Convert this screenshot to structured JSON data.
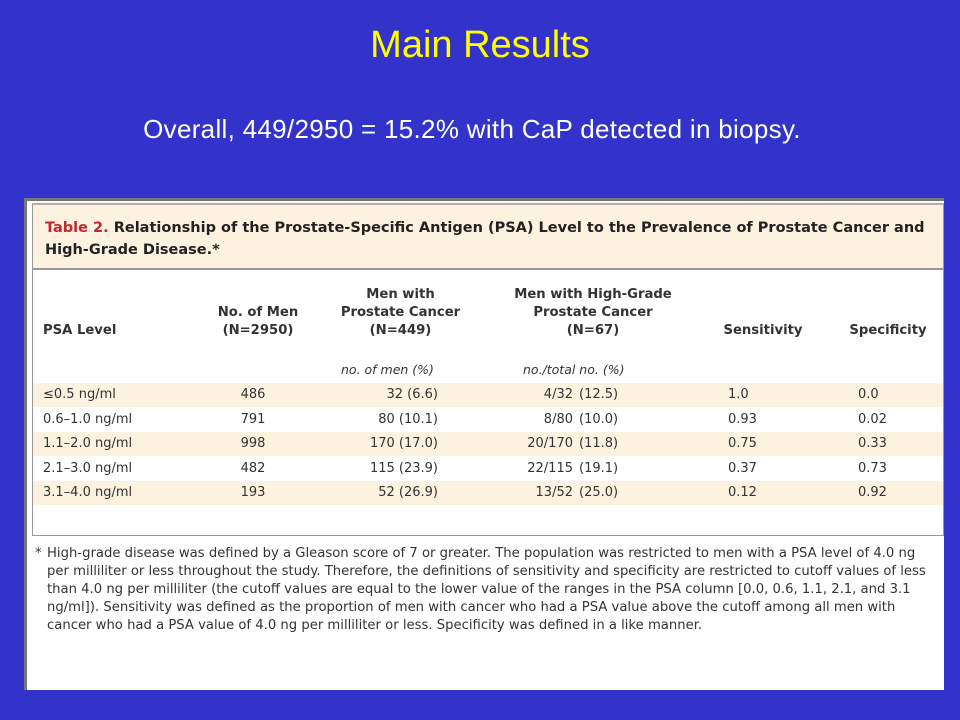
{
  "slide": {
    "title": "Main Results",
    "subtitle": "Overall, 449/2950 = 15.2% with CaP detected in biopsy."
  },
  "table": {
    "caption_label": "Table 2.",
    "caption_text": "Relationship of the Prostate-Specific Antigen (PSA) Level to the Prevalence of Prostate Cancer and High-Grade Disease.*",
    "headers": {
      "psa": "PSA Level",
      "men": [
        "No. of Men",
        "(N=2950)"
      ],
      "cancer": [
        "Men with",
        "Prostate Cancer",
        "(N=449)"
      ],
      "high_grade": [
        "Men with High-Grade",
        "Prostate Cancer",
        "(N=67)"
      ],
      "sensitivity": "Sensitivity",
      "specificity": "Specificity"
    },
    "units": {
      "cancer": "no. of men (%)",
      "high_grade": "no./total no. (%)"
    },
    "rows": [
      {
        "psa": "≤0.5 ng/ml",
        "men": "486",
        "cancer": "32 (6.6)",
        "hg_count": "4/32",
        "hg_pct": "(12.5)",
        "sensitivity": "1.0",
        "specificity": "0.0"
      },
      {
        "psa": "0.6–1.0 ng/ml",
        "men": "791",
        "cancer": "80 (10.1)",
        "hg_count": "8/80",
        "hg_pct": "(10.0)",
        "sensitivity": "0.93",
        "specificity": "0.02"
      },
      {
        "psa": "1.1–2.0 ng/ml",
        "men": "998",
        "cancer": "170 (17.0)",
        "hg_count": "20/170",
        "hg_pct": "(11.8)",
        "sensitivity": "0.75",
        "specificity": "0.33"
      },
      {
        "psa": "2.1–3.0 ng/ml",
        "men": "482",
        "cancer": "115 (23.9)",
        "hg_count": "22/115",
        "hg_pct": "(19.1)",
        "sensitivity": "0.37",
        "specificity": "0.73"
      },
      {
        "psa": "3.1–4.0 ng/ml",
        "men": "193",
        "cancer": "52 (26.9)",
        "hg_count": "13/52",
        "hg_pct": "(25.0)",
        "sensitivity": "0.12",
        "specificity": "0.92"
      }
    ],
    "footnote_marker": "*",
    "footnote": "High-grade disease was defined by a Gleason score of 7 or greater. The population was restricted to men with a PSA level of 4.0 ng per milliliter or less throughout the study. Therefore, the definitions of sensitivity and specificity are restricted to cutoff values of less than 4.0 ng per milliliter (the cutoff values are equal to the lower value of the ranges in the PSA column [0.0, 0.6, 1.1, 2.1, and 3.1 ng/ml]). Sensitivity was defined as the proportion of men with cancer who had a PSA value above the cutoff among all men with cancer who had a PSA value of 4.0 ng per milliliter or less. Specificity was defined in a like manner."
  },
  "colors": {
    "background": "#3333cc",
    "title": "#ffff00",
    "subtitle": "#ffffff",
    "caption_label": "#c1272d",
    "row_shade": "#fdf2e0"
  }
}
